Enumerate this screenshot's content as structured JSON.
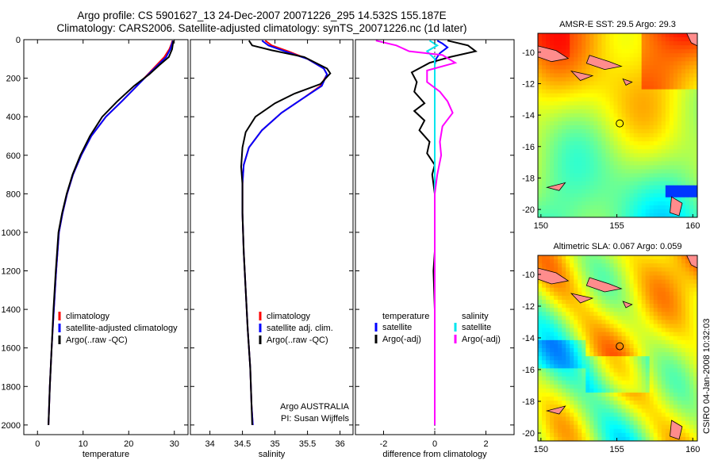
{
  "header": {
    "title_line1": "Argo profile: CS 5901627_13 24-Dec-2007 20071226_295 14.532S 155.187E",
    "title_line2": "Climatology: CARS2006. Satellite-adjusted climatology: synTS_20071226.nc (1d later)"
  },
  "stamp": "CSIRO 04-Jan-2008 10:32:03",
  "colors": {
    "climatology": "#ff0000",
    "satellite": "#0000ff",
    "argo": "#000000",
    "cyan": "#00e5ee",
    "magenta": "#ff00ff"
  },
  "chart_data": [
    {
      "type": "line",
      "xlabel": "temperature",
      "xlim": [
        -3,
        33
      ],
      "ylim": [
        0,
        2050
      ],
      "yreversed": true,
      "xticks": [
        0,
        10,
        20,
        30
      ],
      "yticks": [
        0,
        200,
        400,
        600,
        800,
        1000,
        1200,
        1400,
        1600,
        1800,
        2000
      ],
      "legend": [
        "climatology",
        "satellite-adjusted climatology",
        "Argo(..raw -QC)"
      ],
      "series": [
        {
          "name": "climatology",
          "color": "#ff0000",
          "points": [
            [
              29.6,
              5
            ],
            [
              29.4,
              20
            ],
            [
              28.9,
              50
            ],
            [
              27.8,
              90
            ],
            [
              26.2,
              130
            ],
            [
              24.2,
              180
            ],
            [
              21.8,
              240
            ],
            [
              18.5,
              320
            ],
            [
              15,
              400
            ],
            [
              11.8,
              500
            ],
            [
              9.6,
              600
            ],
            [
              7.8,
              700
            ],
            [
              6.5,
              800
            ],
            [
              5.5,
              900
            ],
            [
              4.7,
              1000
            ],
            [
              4.1,
              1200
            ],
            [
              3.6,
              1400
            ],
            [
              3.1,
              1600
            ],
            [
              2.7,
              1800
            ],
            [
              2.4,
              2000
            ]
          ]
        },
        {
          "name": "satellite-adjusted climatology",
          "color": "#0000ff",
          "points": [
            [
              29.7,
              5
            ],
            [
              29.5,
              20
            ],
            [
              29.1,
              50
            ],
            [
              28.2,
              90
            ],
            [
              26.5,
              130
            ],
            [
              24.3,
              180
            ],
            [
              21.8,
              240
            ],
            [
              18.5,
              320
            ],
            [
              15,
              400
            ],
            [
              11.8,
              500
            ],
            [
              9.6,
              600
            ],
            [
              7.8,
              700
            ],
            [
              6.5,
              800
            ],
            [
              5.5,
              900
            ],
            [
              4.7,
              1000
            ],
            [
              4.1,
              1200
            ],
            [
              3.6,
              1400
            ],
            [
              3.1,
              1600
            ],
            [
              2.7,
              1800
            ],
            [
              2.4,
              2000
            ]
          ]
        },
        {
          "name": "Argo(..raw -QC)",
          "color": "#000000",
          "points": [
            [
              29.8,
              5
            ],
            [
              29.7,
              20
            ],
            [
              29.5,
              50
            ],
            [
              28.8,
              90
            ],
            [
              26.8,
              130
            ],
            [
              24.5,
              180
            ],
            [
              21.2,
              240
            ],
            [
              17.5,
              320
            ],
            [
              14.2,
              400
            ],
            [
              11.5,
              500
            ],
            [
              9.4,
              600
            ],
            [
              7.7,
              700
            ],
            [
              6.4,
              800
            ],
            [
              5.4,
              900
            ],
            [
              4.6,
              1000
            ],
            [
              4,
              1200
            ],
            [
              3.5,
              1400
            ],
            [
              3.1,
              1600
            ],
            [
              2.7,
              1800
            ],
            [
              2.4,
              2000
            ]
          ]
        }
      ]
    },
    {
      "type": "line",
      "xlabel": "salinity",
      "xlim": [
        33.7,
        36.2
      ],
      "ylim": [
        0,
        2050
      ],
      "yreversed": true,
      "xticks": [
        34,
        34.5,
        35,
        35.5,
        36
      ],
      "legend": [
        "climatology",
        "satellite adj. clim.",
        "Argo(..raw -QC)"
      ],
      "series": [
        {
          "name": "climatology",
          "color": "#ff0000",
          "points": [
            [
              34.85,
              5
            ],
            [
              34.95,
              30
            ],
            [
              35.2,
              60
            ],
            [
              35.5,
              100
            ],
            [
              35.75,
              150
            ],
            [
              35.8,
              180
            ],
            [
              35.7,
              240
            ],
            [
              35.45,
              300
            ],
            [
              35.1,
              380
            ],
            [
              34.8,
              470
            ],
            [
              34.6,
              560
            ],
            [
              34.52,
              650
            ],
            [
              34.5,
              750
            ],
            [
              34.5,
              900
            ],
            [
              34.52,
              1100
            ],
            [
              34.55,
              1300
            ],
            [
              34.58,
              1500
            ],
            [
              34.62,
              1700
            ],
            [
              34.64,
              1900
            ],
            [
              34.66,
              2000
            ]
          ]
        },
        {
          "name": "satellite adj. clim.",
          "color": "#0000ff",
          "points": [
            [
              34.8,
              5
            ],
            [
              34.9,
              30
            ],
            [
              35.15,
              60
            ],
            [
              35.5,
              100
            ],
            [
              35.75,
              150
            ],
            [
              35.8,
              180
            ],
            [
              35.72,
              240
            ],
            [
              35.45,
              300
            ],
            [
              35.1,
              380
            ],
            [
              34.8,
              470
            ],
            [
              34.6,
              560
            ],
            [
              34.52,
              650
            ],
            [
              34.5,
              750
            ],
            [
              34.5,
              900
            ],
            [
              34.52,
              1100
            ],
            [
              34.55,
              1300
            ],
            [
              34.58,
              1500
            ],
            [
              34.62,
              1700
            ],
            [
              34.64,
              1900
            ],
            [
              34.66,
              2000
            ]
          ]
        },
        {
          "name": "Argo(..raw -QC)",
          "color": "#000000",
          "points": [
            [
              34.6,
              5
            ],
            [
              34.65,
              30
            ],
            [
              34.95,
              55
            ],
            [
              35.45,
              90
            ],
            [
              35.8,
              150
            ],
            [
              35.85,
              175
            ],
            [
              35.7,
              230
            ],
            [
              35.3,
              280
            ],
            [
              35,
              330
            ],
            [
              34.7,
              400
            ],
            [
              34.55,
              480
            ],
            [
              34.5,
              560
            ],
            [
              34.48,
              660
            ],
            [
              34.5,
              750
            ],
            [
              34.5,
              900
            ],
            [
              34.52,
              1100
            ],
            [
              34.55,
              1300
            ],
            [
              34.58,
              1500
            ],
            [
              34.62,
              1700
            ],
            [
              34.64,
              1900
            ],
            [
              34.65,
              2000
            ]
          ]
        }
      ]
    },
    {
      "type": "line",
      "xlabel": "difference from climatology",
      "xlim": [
        -3.1,
        3.1
      ],
      "ylim": [
        0,
        2050
      ],
      "yreversed": true,
      "xticks": [
        -2,
        0,
        2
      ],
      "legend_groups": [
        {
          "header": "temperature",
          "items": [
            "satellite",
            "Argo(-adj)"
          ]
        },
        {
          "header": "salinity",
          "items": [
            "satellite",
            "Argo(-adj)"
          ]
        }
      ],
      "series": [
        {
          "name": "temperature satellite",
          "color": "#0000ff",
          "points": [
            [
              0.1,
              5
            ],
            [
              0.3,
              20
            ],
            [
              0.5,
              40
            ],
            [
              0.2,
              70
            ],
            [
              0.05,
              100
            ],
            [
              0,
              130
            ],
            [
              0,
              2000
            ]
          ]
        },
        {
          "name": "temperature Argo(-adj)",
          "color": "#000000",
          "points": [
            [
              0.5,
              5
            ],
            [
              1.3,
              30
            ],
            [
              1.6,
              60
            ],
            [
              0.6,
              90
            ],
            [
              -0.2,
              120
            ],
            [
              -0.9,
              170
            ],
            [
              -0.7,
              220
            ],
            [
              -0.8,
              270
            ],
            [
              -0.4,
              330
            ],
            [
              -0.8,
              370
            ],
            [
              -0.4,
              420
            ],
            [
              -0.6,
              470
            ],
            [
              -0.2,
              530
            ],
            [
              -0.3,
              590
            ],
            [
              0,
              650
            ],
            [
              -0.1,
              700
            ],
            [
              0,
              800
            ],
            [
              0,
              1100
            ],
            [
              -0.05,
              1200
            ],
            [
              0,
              1400
            ],
            [
              0,
              2000
            ]
          ]
        },
        {
          "name": "salinity satellite",
          "color": "#00e5ee",
          "points": [
            [
              -0.2,
              5
            ],
            [
              0.1,
              30
            ],
            [
              -0.3,
              60
            ],
            [
              0,
              100
            ],
            [
              0,
              2000
            ]
          ]
        },
        {
          "name": "salinity Argo(-adj)",
          "color": "#ff00ff",
          "points": [
            [
              -2.3,
              5
            ],
            [
              -1.5,
              30
            ],
            [
              -1,
              60
            ],
            [
              0.3,
              80
            ],
            [
              0.8,
              120
            ],
            [
              -0.3,
              160
            ],
            [
              -0.3,
              220
            ],
            [
              0.2,
              270
            ],
            [
              0.5,
              320
            ],
            [
              0.7,
              380
            ],
            [
              0.3,
              450
            ],
            [
              0.2,
              530
            ],
            [
              0.25,
              600
            ],
            [
              0.1,
              700
            ],
            [
              0,
              800
            ],
            [
              0,
              2000
            ]
          ]
        }
      ]
    },
    {
      "type": "heatmap",
      "title": "AMSR-E SST: 29.5  Argo: 29.3",
      "xlim": [
        149.8,
        160.3
      ],
      "ylim": [
        -20.5,
        -8.8
      ],
      "xticks": [
        150,
        155,
        160
      ],
      "yticks": [
        -10,
        -12,
        -14,
        -16,
        -18,
        -20
      ],
      "marker": [
        155.19,
        -14.53
      ]
    },
    {
      "type": "heatmap",
      "title": "Altimetric SLA: 0.067  Argo: 0.059",
      "xlim": [
        149.8,
        160.3
      ],
      "ylim": [
        -20.5,
        -8.8
      ],
      "xticks": [
        150,
        155,
        160
      ],
      "yticks": [
        -10,
        -12,
        -14,
        -16,
        -18,
        -20
      ],
      "marker": [
        155.19,
        -14.53
      ]
    }
  ],
  "annotations": {
    "argo_centre": "Argo AUSTRALIA",
    "pi": "PI: Susan Wijffels"
  }
}
